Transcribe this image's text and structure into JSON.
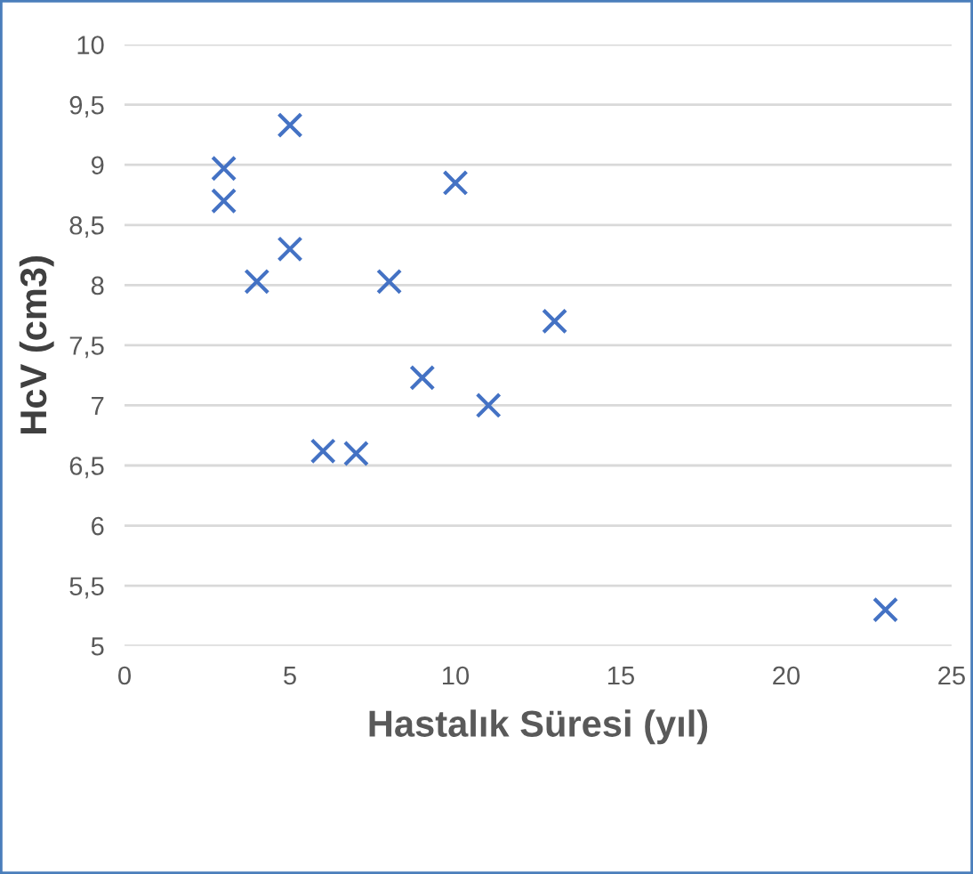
{
  "chart_data": {
    "type": "scatter",
    "xlabel": "Hastalık Süresi (yıl)",
    "ylabel": "HcV (cm3)",
    "x": [
      3,
      3,
      5,
      5,
      4,
      6,
      7,
      8,
      9,
      10,
      11,
      13,
      23
    ],
    "values": [
      8.97,
      8.7,
      9.33,
      8.3,
      8.03,
      6.62,
      6.6,
      8.03,
      7.23,
      8.85,
      7.0,
      7.7,
      5.3
    ],
    "color": "#4472c4",
    "marker": "cross",
    "xlim": [
      0,
      25
    ],
    "xticks": [
      0,
      5,
      10,
      15,
      20,
      25
    ],
    "ylim": [
      5,
      10
    ],
    "yticks": [
      5,
      {
        "value": 5.5,
        "label": "5,5"
      },
      6,
      {
        "value": 6.5,
        "label": "6,5"
      },
      7,
      {
        "value": 7.5,
        "label": "7,5"
      },
      8,
      {
        "value": 8.5,
        "label": "8,5"
      },
      9,
      {
        "value": 9.5,
        "label": "9,5"
      },
      10
    ],
    "grid": "y"
  }
}
